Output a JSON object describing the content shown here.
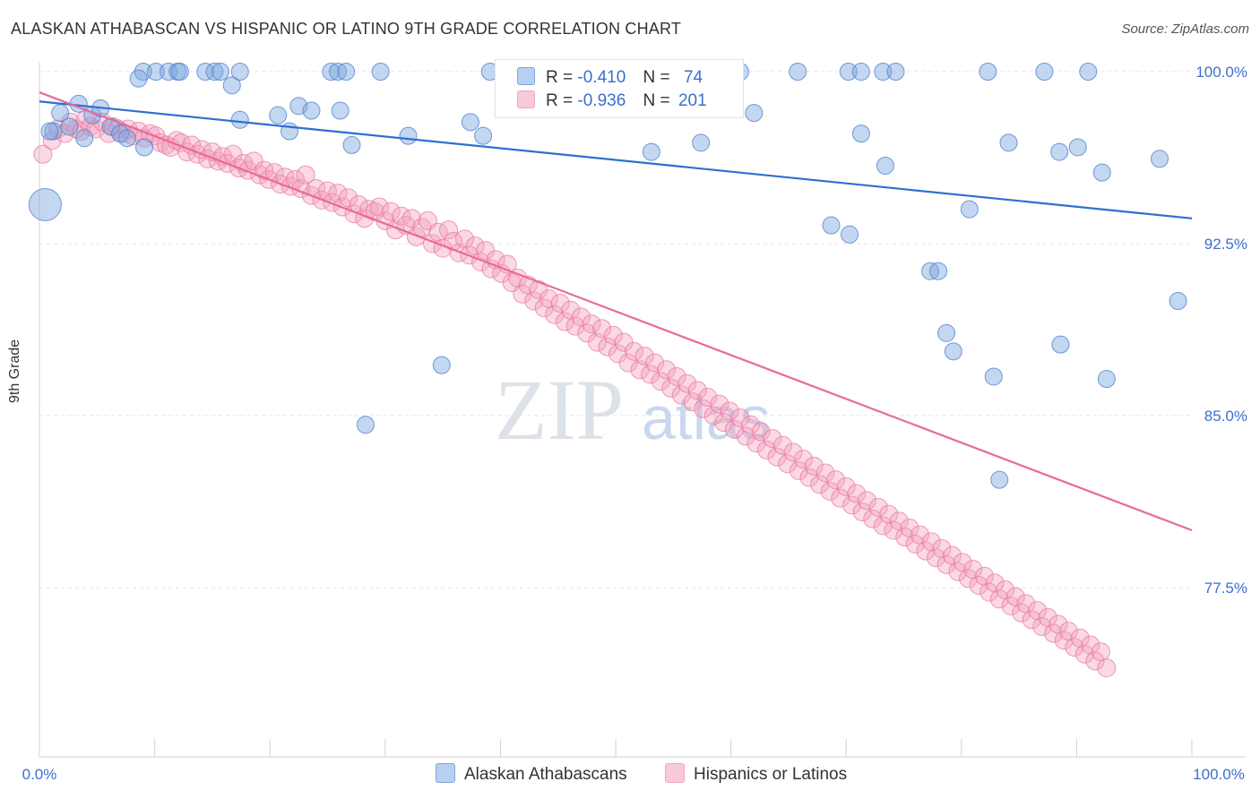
{
  "title": "ALASKAN ATHABASCAN VS HISPANIC OR LATINO 9TH GRADE CORRELATION CHART",
  "source": "Source: ZipAtlas.com",
  "watermark": {
    "zip": "ZIP",
    "atlas": "atlas"
  },
  "legend_top": [
    {
      "r_label": "R =",
      "r_value": "-0.410",
      "n_label": "N =",
      "n_value": "74"
    },
    {
      "r_label": "R =",
      "r_value": "-0.936",
      "n_label": "N =",
      "n_value": "201"
    }
  ],
  "legend_bottom": [
    "Alaskan Athabascans",
    "Hispanics or Latinos"
  ],
  "chart_data": {
    "type": "scatter",
    "title": "ALASKAN ATHABASCAN VS HISPANIC OR LATINO 9TH GRADE CORRELATION CHART",
    "xlabel": "",
    "ylabel": "9th Grade",
    "xlim": [
      0,
      100
    ],
    "ylim": [
      72.0,
      101.0
    ],
    "x_tick_labels": [
      "0.0%",
      "100.0%"
    ],
    "y_ticks": [
      100.0,
      92.5,
      85.0,
      77.5
    ],
    "y_tick_labels": [
      "100.0%",
      "92.5%",
      "85.0%",
      "77.5%"
    ],
    "grid": true,
    "legend_position": "top-center",
    "colors": {
      "blue": "#7aa6e0",
      "blue_line": "#2f6fd3",
      "pink": "#f2a3bf",
      "pink_line": "#e86a98",
      "tick_text": "#3a6fd0"
    },
    "series": [
      {
        "name": "Alaskan Athabascans",
        "color": "#7aa6e0",
        "trend": {
          "x": [
            0,
            100
          ],
          "y": [
            98.7,
            93.6
          ]
        },
        "points": [
          [
            0.5,
            94.2
          ],
          [
            1.2,
            97.4
          ],
          [
            1.8,
            98.2
          ],
          [
            2.6,
            97.6
          ],
          [
            3.4,
            98.6
          ],
          [
            3.9,
            97.1
          ],
          [
            4.6,
            98.1
          ],
          [
            5.3,
            98.4
          ],
          [
            6.2,
            97.6
          ],
          [
            7.0,
            97.3
          ],
          [
            7.6,
            97.1
          ],
          [
            9.0,
            100.0
          ],
          [
            10.1,
            100.0
          ],
          [
            8.6,
            99.7
          ],
          [
            11.2,
            100.0
          ],
          [
            12.0,
            100.0
          ],
          [
            12.2,
            100.0
          ],
          [
            14.4,
            100.0
          ],
          [
            15.2,
            100.0
          ],
          [
            15.7,
            100.0
          ],
          [
            16.7,
            99.4
          ],
          [
            17.4,
            100.0
          ],
          [
            17.4,
            97.9
          ],
          [
            20.7,
            98.1
          ],
          [
            21.7,
            97.4
          ],
          [
            22.5,
            98.5
          ],
          [
            23.6,
            98.3
          ],
          [
            25.3,
            100.0
          ],
          [
            25.9,
            100.0
          ],
          [
            26.1,
            98.3
          ],
          [
            26.6,
            100.0
          ],
          [
            27.1,
            96.8
          ],
          [
            29.6,
            100.0
          ],
          [
            32.0,
            97.2
          ],
          [
            37.4,
            97.8
          ],
          [
            38.5,
            97.2
          ],
          [
            39.1,
            100.0
          ],
          [
            41.0,
            100.0
          ],
          [
            45.6,
            100.0
          ],
          [
            53.1,
            96.5
          ],
          [
            57.4,
            96.9
          ],
          [
            60.8,
            100.0
          ],
          [
            62.0,
            98.2
          ],
          [
            65.8,
            100.0
          ],
          [
            68.7,
            93.3
          ],
          [
            70.2,
            100.0
          ],
          [
            70.3,
            92.9
          ],
          [
            71.3,
            97.3
          ],
          [
            71.3,
            100.0
          ],
          [
            73.2,
            100.0
          ],
          [
            73.4,
            95.9
          ],
          [
            74.3,
            100.0
          ],
          [
            77.3,
            91.3
          ],
          [
            78.0,
            91.3
          ],
          [
            78.7,
            88.6
          ],
          [
            79.3,
            87.8
          ],
          [
            80.7,
            94.0
          ],
          [
            82.3,
            100.0
          ],
          [
            82.8,
            86.7
          ],
          [
            83.3,
            82.2
          ],
          [
            84.1,
            96.9
          ],
          [
            87.2,
            100.0
          ],
          [
            88.5,
            96.5
          ],
          [
            88.6,
            88.1
          ],
          [
            90.1,
            96.7
          ],
          [
            91.0,
            100.0
          ],
          [
            92.2,
            95.6
          ],
          [
            92.6,
            86.6
          ],
          [
            97.2,
            96.2
          ],
          [
            98.8,
            90.0
          ],
          [
            28.3,
            84.6
          ],
          [
            34.9,
            87.2
          ],
          [
            9.1,
            96.7
          ],
          [
            0.9,
            97.4
          ]
        ]
      },
      {
        "name": "Hispanics or Latinos",
        "color": "#f2a3bf",
        "trend": {
          "x": [
            0,
            100
          ],
          "y": [
            99.1,
            80.0
          ]
        },
        "points": [
          [
            0.3,
            96.4
          ],
          [
            1.1,
            97.0
          ],
          [
            1.6,
            97.5
          ],
          [
            2.2,
            97.3
          ],
          [
            2.7,
            97.8
          ],
          [
            3.2,
            97.5
          ],
          [
            3.6,
            97.4
          ],
          [
            4.0,
            97.9
          ],
          [
            4.4,
            97.6
          ],
          [
            4.9,
            97.5
          ],
          [
            5.5,
            97.8
          ],
          [
            6.0,
            97.3
          ],
          [
            6.4,
            97.6
          ],
          [
            6.8,
            97.5
          ],
          [
            7.2,
            97.3
          ],
          [
            7.7,
            97.5
          ],
          [
            8.1,
            97.2
          ],
          [
            8.6,
            97.4
          ],
          [
            9.1,
            97.1
          ],
          [
            9.6,
            97.3
          ],
          [
            10.1,
            97.2
          ],
          [
            10.5,
            96.9
          ],
          [
            11.0,
            96.8
          ],
          [
            11.4,
            96.7
          ],
          [
            11.9,
            97.0
          ],
          [
            12.3,
            96.9
          ],
          [
            12.8,
            96.5
          ],
          [
            13.2,
            96.8
          ],
          [
            13.7,
            96.4
          ],
          [
            14.1,
            96.6
          ],
          [
            14.6,
            96.2
          ],
          [
            15.0,
            96.5
          ],
          [
            15.5,
            96.1
          ],
          [
            15.9,
            96.3
          ],
          [
            16.3,
            96.0
          ],
          [
            16.8,
            96.4
          ],
          [
            17.3,
            95.8
          ],
          [
            17.7,
            96.0
          ],
          [
            18.1,
            95.7
          ],
          [
            18.6,
            96.1
          ],
          [
            19.1,
            95.5
          ],
          [
            19.5,
            95.7
          ],
          [
            19.9,
            95.3
          ],
          [
            20.4,
            95.6
          ],
          [
            20.9,
            95.1
          ],
          [
            21.3,
            95.4
          ],
          [
            21.8,
            95.0
          ],
          [
            22.2,
            95.3
          ],
          [
            22.7,
            94.9
          ],
          [
            23.1,
            95.5
          ],
          [
            23.6,
            94.6
          ],
          [
            24.0,
            94.9
          ],
          [
            24.5,
            94.4
          ],
          [
            25.0,
            94.8
          ],
          [
            25.4,
            94.3
          ],
          [
            25.9,
            94.7
          ],
          [
            26.3,
            94.1
          ],
          [
            26.8,
            94.5
          ],
          [
            27.3,
            93.8
          ],
          [
            27.7,
            94.2
          ],
          [
            28.2,
            93.6
          ],
          [
            28.6,
            94.0
          ],
          [
            29.1,
            93.9
          ],
          [
            29.5,
            94.1
          ],
          [
            30.0,
            93.5
          ],
          [
            30.5,
            93.9
          ],
          [
            30.9,
            93.1
          ],
          [
            31.4,
            93.7
          ],
          [
            31.8,
            93.3
          ],
          [
            32.3,
            93.6
          ],
          [
            32.7,
            92.8
          ],
          [
            33.2,
            93.2
          ],
          [
            33.7,
            93.5
          ],
          [
            34.1,
            92.5
          ],
          [
            34.6,
            93.0
          ],
          [
            35.0,
            92.3
          ],
          [
            35.5,
            93.1
          ],
          [
            35.9,
            92.6
          ],
          [
            36.4,
            92.1
          ],
          [
            36.9,
            92.7
          ],
          [
            37.3,
            92.0
          ],
          [
            37.8,
            92.4
          ],
          [
            38.3,
            91.7
          ],
          [
            38.7,
            92.2
          ],
          [
            39.2,
            91.4
          ],
          [
            39.6,
            91.8
          ],
          [
            40.1,
            91.2
          ],
          [
            40.6,
            91.6
          ],
          [
            41.0,
            90.8
          ],
          [
            41.5,
            91.0
          ],
          [
            41.9,
            90.3
          ],
          [
            42.4,
            90.7
          ],
          [
            42.9,
            90.0
          ],
          [
            43.3,
            90.5
          ],
          [
            43.8,
            89.7
          ],
          [
            44.2,
            90.1
          ],
          [
            44.7,
            89.4
          ],
          [
            45.2,
            89.9
          ],
          [
            45.6,
            89.1
          ],
          [
            46.1,
            89.6
          ],
          [
            46.5,
            88.9
          ],
          [
            47.0,
            89.3
          ],
          [
            47.5,
            88.6
          ],
          [
            47.9,
            89.0
          ],
          [
            48.4,
            88.2
          ],
          [
            48.8,
            88.8
          ],
          [
            49.3,
            88.0
          ],
          [
            49.8,
            88.5
          ],
          [
            50.2,
            87.7
          ],
          [
            50.7,
            88.2
          ],
          [
            51.1,
            87.3
          ],
          [
            51.6,
            87.8
          ],
          [
            52.1,
            87.0
          ],
          [
            52.5,
            87.6
          ],
          [
            53.0,
            86.8
          ],
          [
            53.4,
            87.3
          ],
          [
            53.9,
            86.5
          ],
          [
            54.4,
            87.0
          ],
          [
            54.8,
            86.2
          ],
          [
            55.3,
            86.7
          ],
          [
            55.7,
            85.9
          ],
          [
            56.2,
            86.4
          ],
          [
            56.7,
            85.6
          ],
          [
            57.1,
            86.1
          ],
          [
            57.6,
            85.3
          ],
          [
            58.0,
            85.8
          ],
          [
            58.5,
            85.0
          ],
          [
            59.0,
            85.5
          ],
          [
            59.4,
            84.7
          ],
          [
            59.9,
            85.2
          ],
          [
            60.3,
            84.4
          ],
          [
            60.8,
            84.9
          ],
          [
            61.3,
            84.1
          ],
          [
            61.7,
            84.6
          ],
          [
            62.2,
            83.8
          ],
          [
            62.6,
            84.3
          ],
          [
            63.1,
            83.5
          ],
          [
            63.6,
            84.0
          ],
          [
            64.0,
            83.2
          ],
          [
            64.5,
            83.7
          ],
          [
            64.9,
            82.9
          ],
          [
            65.4,
            83.4
          ],
          [
            65.9,
            82.6
          ],
          [
            66.3,
            83.1
          ],
          [
            66.8,
            82.3
          ],
          [
            67.2,
            82.8
          ],
          [
            67.7,
            82.0
          ],
          [
            68.2,
            82.5
          ],
          [
            68.6,
            81.7
          ],
          [
            69.1,
            82.2
          ],
          [
            69.5,
            81.4
          ],
          [
            70.0,
            81.9
          ],
          [
            70.5,
            81.1
          ],
          [
            70.9,
            81.6
          ],
          [
            71.4,
            80.8
          ],
          [
            71.8,
            81.3
          ],
          [
            72.3,
            80.5
          ],
          [
            72.8,
            81.0
          ],
          [
            73.2,
            80.2
          ],
          [
            73.7,
            80.7
          ],
          [
            74.1,
            80.0
          ],
          [
            74.6,
            80.4
          ],
          [
            75.1,
            79.7
          ],
          [
            75.5,
            80.1
          ],
          [
            76.0,
            79.4
          ],
          [
            76.4,
            79.8
          ],
          [
            76.9,
            79.1
          ],
          [
            77.4,
            79.5
          ],
          [
            77.8,
            78.8
          ],
          [
            78.3,
            79.2
          ],
          [
            78.7,
            78.5
          ],
          [
            79.2,
            78.9
          ],
          [
            79.7,
            78.2
          ],
          [
            80.1,
            78.6
          ],
          [
            80.6,
            77.9
          ],
          [
            81.0,
            78.3
          ],
          [
            81.5,
            77.6
          ],
          [
            82.0,
            78.0
          ],
          [
            82.4,
            77.3
          ],
          [
            82.9,
            77.7
          ],
          [
            83.3,
            77.0
          ],
          [
            83.8,
            77.4
          ],
          [
            84.3,
            76.7
          ],
          [
            84.7,
            77.1
          ],
          [
            85.2,
            76.4
          ],
          [
            85.6,
            76.8
          ],
          [
            86.1,
            76.1
          ],
          [
            86.6,
            76.5
          ],
          [
            87.0,
            75.8
          ],
          [
            87.5,
            76.2
          ],
          [
            88.0,
            75.5
          ],
          [
            88.4,
            75.9
          ],
          [
            88.9,
            75.2
          ],
          [
            89.3,
            75.6
          ],
          [
            89.8,
            74.9
          ],
          [
            90.3,
            75.3
          ],
          [
            90.7,
            74.6
          ],
          [
            91.2,
            75.0
          ],
          [
            91.6,
            74.3
          ],
          [
            92.1,
            74.7
          ],
          [
            92.6,
            74.0
          ]
        ]
      }
    ]
  }
}
